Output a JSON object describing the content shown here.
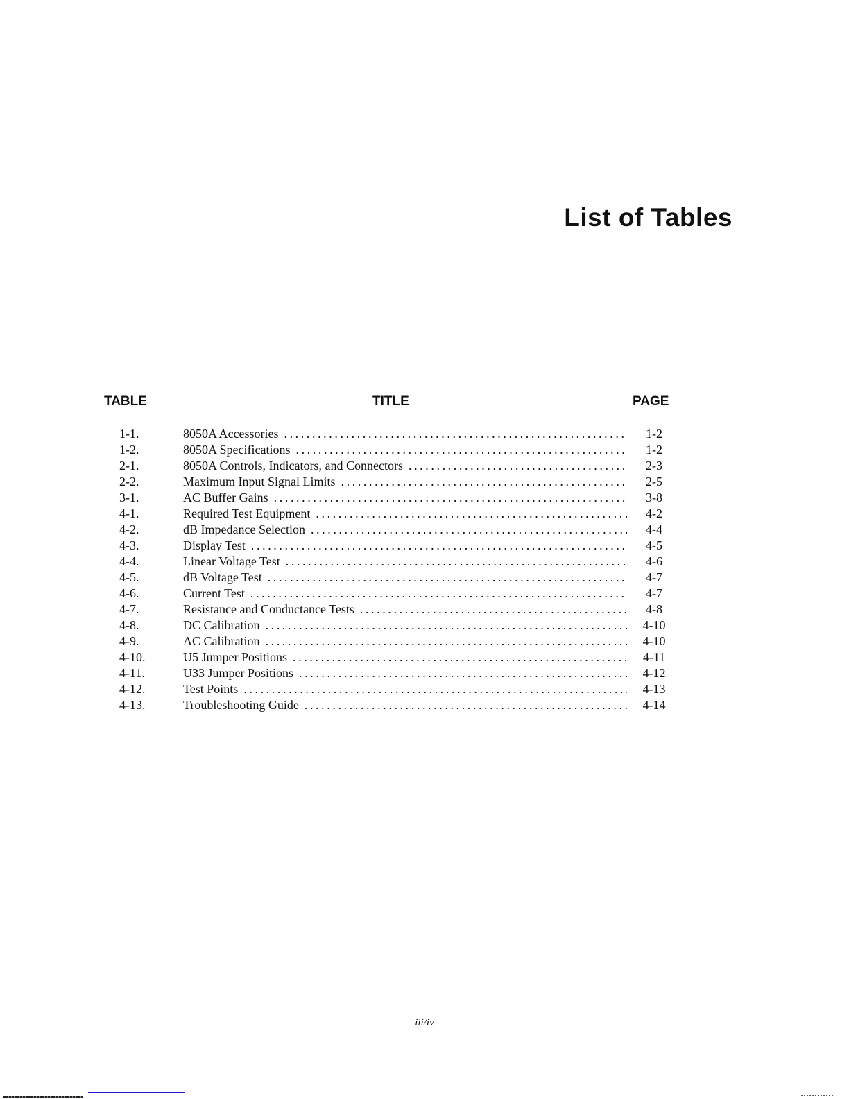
{
  "page_title": "List of Tables",
  "columns": {
    "table": "TABLE",
    "title": "TITLE",
    "page": "PAGE"
  },
  "entries": [
    {
      "num": "1-1.",
      "title": "8050A Accessories",
      "page": "1-2"
    },
    {
      "num": "1-2.",
      "title": "8050A Specifications",
      "page": "1-2"
    },
    {
      "num": "2-1.",
      "title": "8050A Controls, Indicators, and Connectors",
      "page": "2-3"
    },
    {
      "num": "2-2.",
      "title": "Maximum Input Signal Limits",
      "page": "2-5"
    },
    {
      "num": "3-1.",
      "title": "AC Buffer Gains",
      "page": "3-8"
    },
    {
      "num": "4-1.",
      "title": "Required Test Equipment",
      "page": "4-2"
    },
    {
      "num": "4-2.",
      "title": "dB Impedance Selection",
      "page": "4-4"
    },
    {
      "num": "4-3.",
      "title": "Display Test",
      "page": "4-5"
    },
    {
      "num": "4-4.",
      "title": "Linear Voltage Test",
      "page": "4-6"
    },
    {
      "num": "4-5.",
      "title": "dB Voltage Test",
      "page": "4-7"
    },
    {
      "num": "4-6.",
      "title": "Current Test",
      "page": "4-7"
    },
    {
      "num": "4-7.",
      "title": "Resistance and Conductance Tests",
      "page": "4-8"
    },
    {
      "num": "4-8.",
      "title": "DC Calibration",
      "page": "4-10"
    },
    {
      "num": "4-9.",
      "title": "AC Calibration",
      "page": "4-10"
    },
    {
      "num": "4-10.",
      "title": "U5 Jumper Positions",
      "page": "4-11"
    },
    {
      "num": "4-11.",
      "title": "U33 Jumper Positions",
      "page": "4-12"
    },
    {
      "num": "4-12.",
      "title": "Test Points",
      "page": "4-13"
    },
    {
      "num": "4-13.",
      "title": "Troubleshooting Guide",
      "page": "4-14"
    }
  ],
  "folio": "iii/iv"
}
